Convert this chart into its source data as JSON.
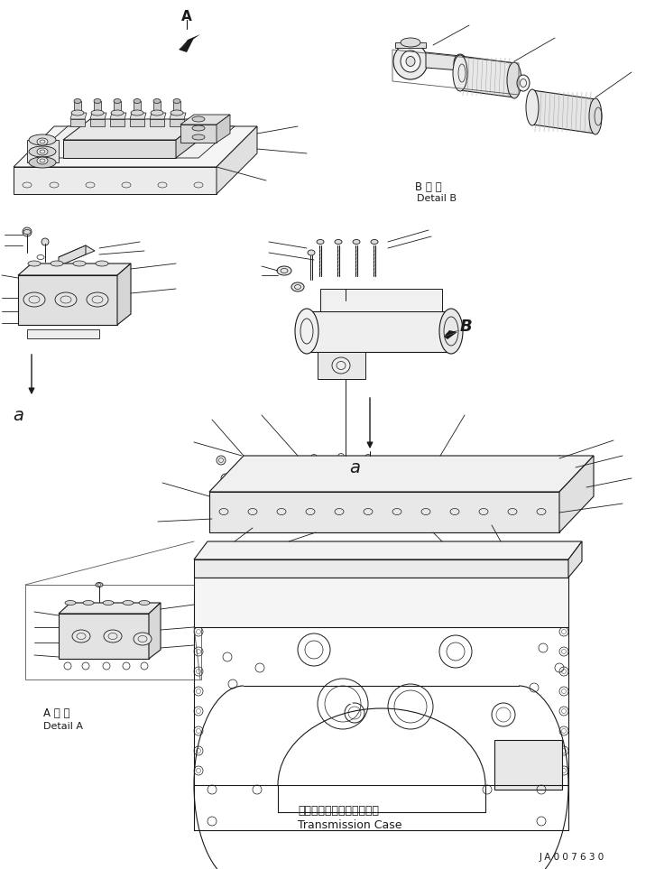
{
  "bg_color": "#ffffff",
  "lc": "#1a1a1a",
  "fig_width": 7.26,
  "fig_height": 9.63,
  "dpi": 100,
  "labels": {
    "detail_b_jp": "B 詳 細",
    "detail_b_en": "Detail B",
    "detail_a_jp": "A 詳 細",
    "detail_a_en": "Detail A",
    "trans_jp": "トランスミッションケース",
    "trans_en": "Transmission Case",
    "part_id": "J A 0 0 7 6 3 0",
    "label_A": "A",
    "label_B": "B",
    "label_a1": "a",
    "label_a2": "a"
  }
}
